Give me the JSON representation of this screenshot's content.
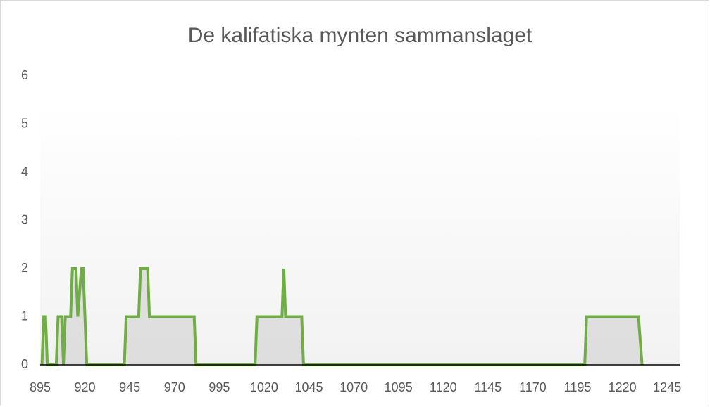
{
  "chart_data": {
    "type": "line",
    "title": "De kalifatiska mynten sammanslaget",
    "series": [
      {
        "color": "#70ad47",
        "x": [
          896,
          897,
          898,
          899,
          904,
          905,
          907,
          908,
          909,
          912,
          913,
          915,
          916,
          918,
          919,
          921,
          942,
          943,
          950,
          951,
          955,
          956,
          981,
          982,
          1015,
          1016,
          1030,
          1031,
          1032,
          1041,
          1042,
          1199,
          1200,
          1229,
          1231
        ],
        "values": [
          0,
          1,
          1,
          0,
          0,
          1,
          1,
          0,
          1,
          1,
          2,
          2,
          1,
          2,
          2,
          0,
          0,
          1,
          1,
          2,
          2,
          1,
          1,
          0,
          0,
          1,
          1,
          2,
          1,
          1,
          0,
          0,
          1,
          1,
          0
        ]
      }
    ],
    "xlim": [
      895,
      1252
    ],
    "xticks": [
      895,
      920,
      945,
      970,
      995,
      1020,
      1045,
      1070,
      1095,
      1120,
      1145,
      1170,
      1195,
      1220,
      1245
    ],
    "ylim": [
      0,
      6
    ],
    "yticks": [
      0,
      1,
      2,
      3,
      4,
      5,
      6
    ],
    "grid": false
  }
}
